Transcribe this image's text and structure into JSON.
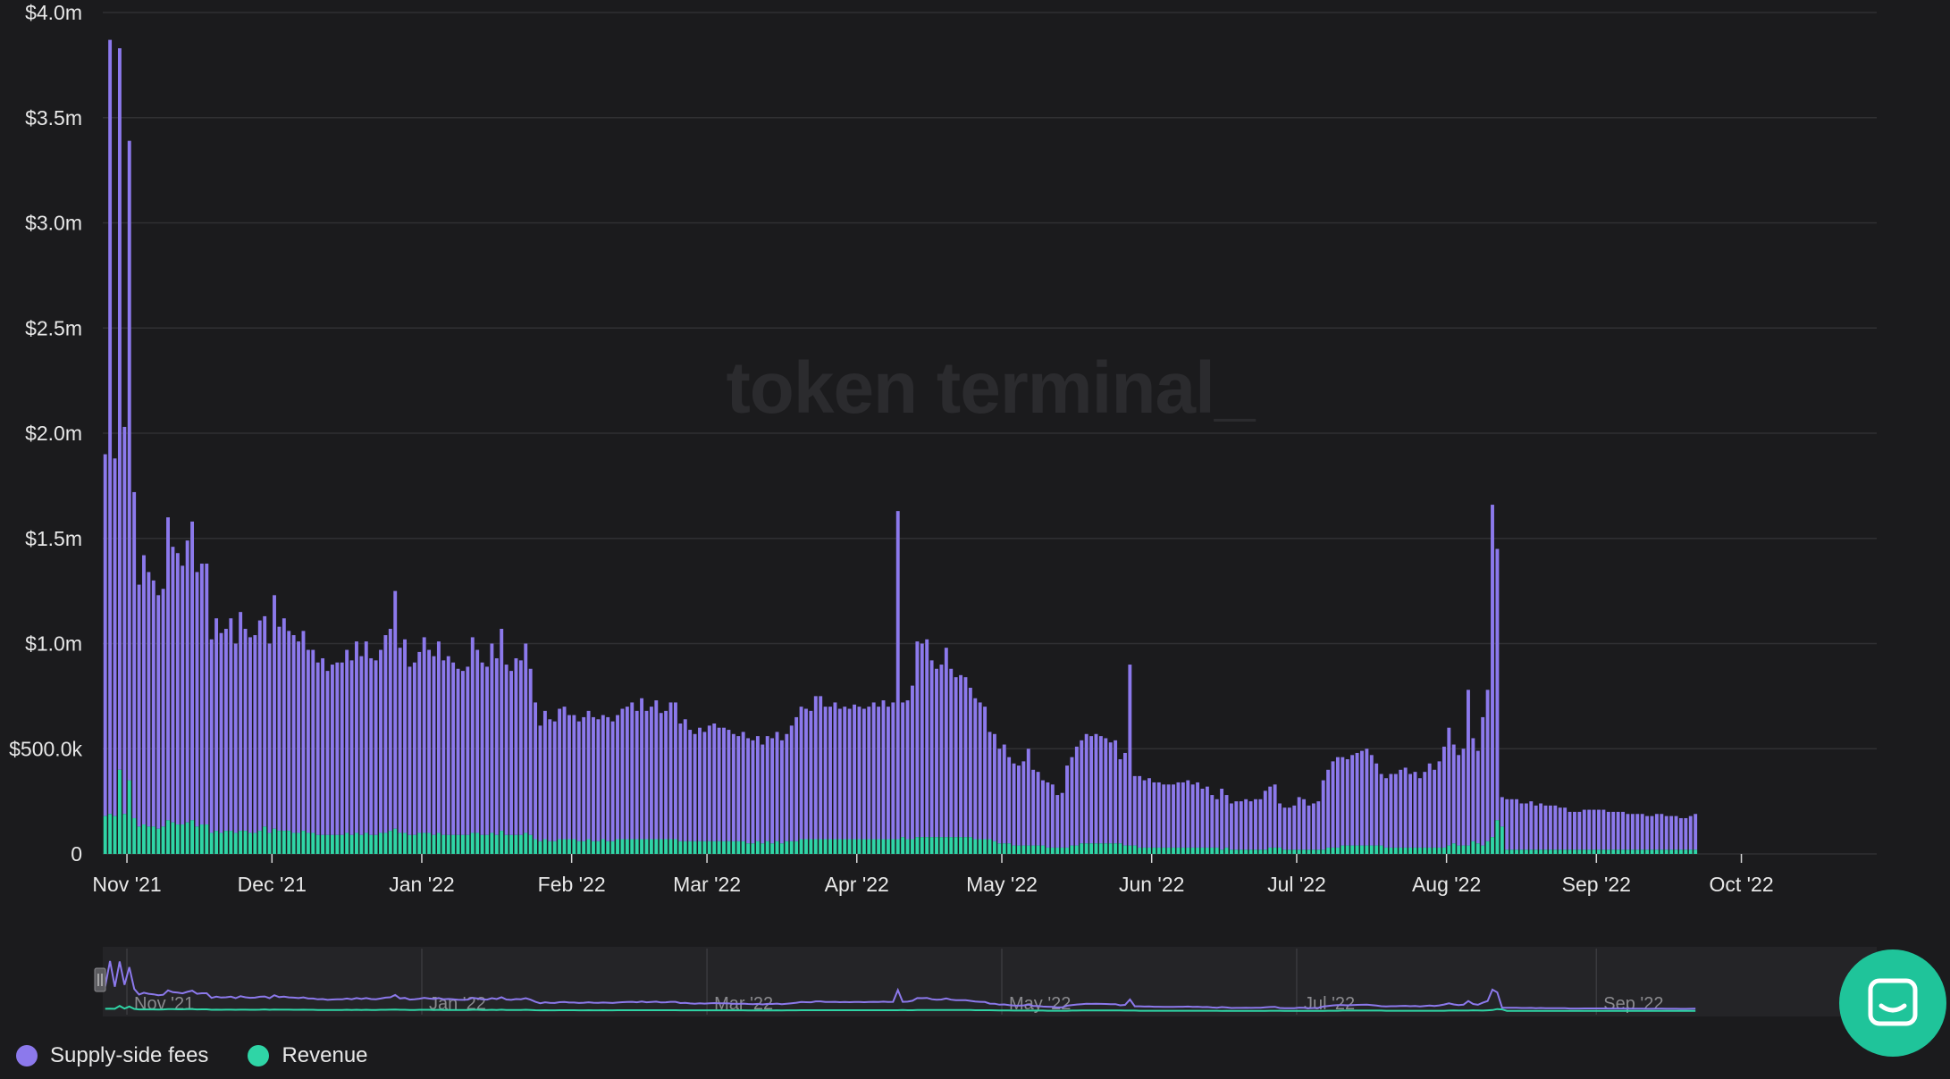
{
  "watermark": "token terminal_",
  "colors": {
    "supply": "#8c79ec",
    "revenue": "#2fd5a6",
    "grid": "#303033",
    "background": "#1b1b1d"
  },
  "legend": [
    {
      "name": "Supply-side fees",
      "color": "#8c79ec"
    },
    {
      "name": "Revenue",
      "color": "#2fd5a6"
    }
  ],
  "chat_icon": "chat-bubble-icon",
  "navigator": {
    "labels": [
      "Nov '21",
      "Jan '22",
      "Mar '22",
      "May '22",
      "Jul '22",
      "Sep '22"
    ]
  },
  "chart_data": {
    "type": "bar",
    "stacked": true,
    "x_start": "2021-10-27",
    "x_end": "2022-10-28",
    "ylim": [
      0,
      4000000
    ],
    "yticks": [
      0,
      500000,
      1000000,
      1500000,
      2000000,
      2500000,
      3000000,
      3500000,
      4000000
    ],
    "ytick_labels": [
      "0",
      "$500.0k",
      "$1.0m",
      "$1.5m",
      "$2.0m",
      "$2.5m",
      "$3.0m",
      "$3.5m",
      "$4.0m"
    ],
    "xtick_labels": [
      "Nov '21",
      "Dec '21",
      "Jan '22",
      "Feb '22",
      "Mar '22",
      "Apr '22",
      "May '22",
      "Jun '22",
      "Jul '22",
      "Aug '22",
      "Sep '22",
      "Oct '22"
    ],
    "grid": true,
    "legend_position": "bottom-left",
    "series": [
      {
        "name": "Supply-side fees",
        "values": [
          1900000,
          3870000,
          1880000,
          3830000,
          2030000,
          3390000,
          1720000,
          1280000,
          1420000,
          1340000,
          1300000,
          1230000,
          1260000,
          1600000,
          1460000,
          1430000,
          1370000,
          1490000,
          1580000,
          1340000,
          1380000,
          1380000,
          1020000,
          1120000,
          1050000,
          1070000,
          1120000,
          1000000,
          1150000,
          1070000,
          1030000,
          1040000,
          1110000,
          1130000,
          1000000,
          1230000,
          1080000,
          1120000,
          1060000,
          1040000,
          1010000,
          1060000,
          970000,
          970000,
          910000,
          930000,
          870000,
          900000,
          910000,
          910000,
          970000,
          920000,
          1010000,
          940000,
          1010000,
          930000,
          920000,
          970000,
          1040000,
          1070000,
          1250000,
          980000,
          1020000,
          890000,
          910000,
          960000,
          1030000,
          970000,
          940000,
          1010000,
          920000,
          940000,
          910000,
          880000,
          870000,
          890000,
          1030000,
          970000,
          910000,
          890000,
          1000000,
          930000,
          1070000,
          900000,
          870000,
          930000,
          920000,
          1000000,
          880000,
          720000,
          610000,
          680000,
          640000,
          630000,
          690000,
          700000,
          660000,
          660000,
          630000,
          650000,
          680000,
          650000,
          640000,
          660000,
          650000,
          630000,
          660000,
          690000,
          700000,
          720000,
          680000,
          740000,
          680000,
          700000,
          730000,
          670000,
          680000,
          720000,
          720000,
          620000,
          640000,
          590000,
          570000,
          600000,
          580000,
          610000,
          620000,
          600000,
          600000,
          590000,
          570000,
          560000,
          580000,
          550000,
          540000,
          560000,
          520000,
          560000,
          550000,
          580000,
          540000,
          570000,
          610000,
          650000,
          700000,
          690000,
          680000,
          750000,
          750000,
          700000,
          700000,
          720000,
          690000,
          700000,
          690000,
          710000,
          700000,
          690000,
          700000,
          720000,
          700000,
          730000,
          700000,
          720000,
          1630000,
          720000,
          730000,
          800000,
          1010000,
          1000000,
          1020000,
          920000,
          880000,
          900000,
          980000,
          880000,
          840000,
          850000,
          840000,
          790000,
          740000,
          720000,
          700000,
          580000,
          570000,
          500000,
          520000,
          460000,
          430000,
          420000,
          440000,
          500000,
          400000,
          390000,
          350000,
          340000,
          330000,
          280000,
          290000,
          420000,
          460000,
          510000,
          540000,
          570000,
          560000,
          570000,
          560000,
          550000,
          530000,
          540000,
          450000,
          480000,
          900000,
          370000,
          370000,
          350000,
          360000,
          340000,
          340000,
          330000,
          330000,
          330000,
          340000,
          340000,
          350000,
          330000,
          340000,
          310000,
          320000,
          280000,
          260000,
          310000,
          280000,
          240000,
          250000,
          250000,
          260000,
          250000,
          260000,
          260000,
          300000,
          320000,
          330000,
          240000,
          220000,
          220000,
          230000,
          270000,
          260000,
          230000,
          240000,
          250000,
          350000,
          400000,
          440000,
          460000,
          460000,
          450000,
          470000,
          480000,
          490000,
          500000,
          470000,
          430000,
          380000,
          360000,
          380000,
          380000,
          400000,
          410000,
          380000,
          390000,
          360000,
          390000,
          430000,
          400000,
          440000,
          510000,
          600000,
          520000,
          470000,
          500000,
          780000,
          550000,
          490000,
          650000,
          780000,
          1660000,
          1450000,
          270000,
          260000,
          260000,
          260000,
          240000,
          240000,
          250000,
          230000,
          240000,
          230000,
          230000,
          230000,
          220000,
          220000,
          200000,
          200000,
          200000,
          210000,
          210000,
          210000,
          210000,
          210000,
          200000,
          200000,
          200000,
          200000,
          190000,
          190000,
          190000,
          190000,
          180000,
          180000,
          190000,
          190000,
          180000,
          180000,
          180000,
          170000,
          170000,
          180000,
          190000
        ]
      },
      {
        "name": "Revenue",
        "values": [
          180000,
          190000,
          180000,
          400000,
          190000,
          350000,
          170000,
          130000,
          140000,
          130000,
          130000,
          120000,
          130000,
          160000,
          150000,
          140000,
          140000,
          150000,
          160000,
          130000,
          140000,
          140000,
          100000,
          110000,
          100000,
          110000,
          110000,
          100000,
          110000,
          110000,
          100000,
          100000,
          110000,
          130000,
          100000,
          120000,
          110000,
          110000,
          110000,
          100000,
          100000,
          110000,
          100000,
          100000,
          90000,
          90000,
          90000,
          90000,
          90000,
          90000,
          100000,
          90000,
          100000,
          90000,
          100000,
          90000,
          90000,
          100000,
          100000,
          110000,
          120000,
          100000,
          100000,
          90000,
          90000,
          100000,
          100000,
          100000,
          90000,
          100000,
          90000,
          90000,
          90000,
          90000,
          90000,
          90000,
          100000,
          100000,
          90000,
          90000,
          100000,
          90000,
          110000,
          90000,
          90000,
          90000,
          90000,
          100000,
          90000,
          70000,
          60000,
          70000,
          60000,
          60000,
          70000,
          70000,
          70000,
          70000,
          60000,
          60000,
          70000,
          60000,
          60000,
          70000,
          60000,
          60000,
          70000,
          70000,
          70000,
          70000,
          70000,
          70000,
          70000,
          70000,
          70000,
          70000,
          70000,
          70000,
          70000,
          60000,
          60000,
          60000,
          60000,
          60000,
          60000,
          60000,
          60000,
          60000,
          60000,
          60000,
          60000,
          60000,
          60000,
          50000,
          50000,
          60000,
          50000,
          60000,
          50000,
          60000,
          50000,
          60000,
          60000,
          60000,
          70000,
          70000,
          70000,
          70000,
          70000,
          70000,
          70000,
          70000,
          70000,
          70000,
          70000,
          70000,
          70000,
          70000,
          70000,
          70000,
          70000,
          70000,
          70000,
          70000,
          70000,
          80000,
          70000,
          70000,
          80000,
          80000,
          80000,
          80000,
          80000,
          80000,
          80000,
          80000,
          80000,
          80000,
          80000,
          80000,
          70000,
          70000,
          70000,
          70000,
          60000,
          50000,
          50000,
          50000,
          40000,
          40000,
          40000,
          40000,
          40000,
          40000,
          40000,
          30000,
          30000,
          30000,
          30000,
          30000,
          40000,
          40000,
          50000,
          50000,
          50000,
          50000,
          50000,
          50000,
          50000,
          50000,
          50000,
          40000,
          40000,
          40000,
          30000,
          30000,
          30000,
          30000,
          30000,
          30000,
          30000,
          30000,
          30000,
          30000,
          30000,
          30000,
          30000,
          30000,
          30000,
          30000,
          30000,
          20000,
          30000,
          20000,
          20000,
          20000,
          20000,
          20000,
          20000,
          20000,
          20000,
          30000,
          30000,
          30000,
          20000,
          20000,
          20000,
          20000,
          20000,
          20000,
          20000,
          20000,
          20000,
          30000,
          30000,
          30000,
          40000,
          40000,
          40000,
          40000,
          40000,
          40000,
          40000,
          40000,
          40000,
          30000,
          30000,
          30000,
          30000,
          30000,
          30000,
          30000,
          30000,
          30000,
          30000,
          30000,
          30000,
          30000,
          40000,
          50000,
          40000,
          40000,
          40000,
          60000,
          50000,
          40000,
          60000,
          80000,
          160000,
          130000,
          20000,
          20000,
          20000,
          20000,
          20000,
          20000,
          20000,
          20000,
          20000,
          20000,
          20000,
          20000,
          20000,
          20000,
          20000,
          20000,
          20000,
          20000,
          20000,
          20000,
          20000,
          20000,
          20000,
          20000,
          20000,
          20000,
          20000,
          20000,
          20000,
          20000,
          20000,
          20000,
          20000,
          20000,
          20000,
          20000,
          20000,
          20000,
          20000,
          20000,
          20000
        ]
      }
    ]
  }
}
